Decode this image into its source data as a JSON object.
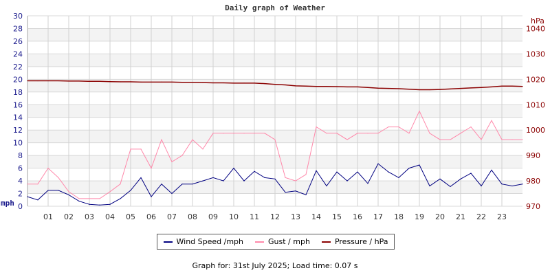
{
  "chart_data": {
    "type": "line",
    "title": "Daily graph of Weather",
    "x_ticks": [
      "01",
      "02",
      "03",
      "04",
      "05",
      "06",
      "07",
      "08",
      "09",
      "10",
      "11",
      "12",
      "13",
      "14",
      "15",
      "16",
      "17",
      "18",
      "19",
      "20",
      "21",
      "22",
      "23"
    ],
    "x_unit": "hour",
    "x": [
      0,
      0.5,
      1,
      1.5,
      2,
      2.5,
      3,
      3.5,
      4,
      4.5,
      5,
      5.5,
      6,
      6.5,
      7,
      7.5,
      8,
      8.5,
      9,
      9.5,
      10,
      10.5,
      11,
      11.5,
      12,
      12.5,
      13,
      13.5,
      14,
      14.5,
      15,
      15.5,
      16,
      16.5,
      17,
      17.5,
      18,
      18.5,
      19,
      19.5,
      20,
      20.5,
      21,
      21.5,
      22,
      22.5,
      23,
      23.5,
      24
    ],
    "left_axis": {
      "label": "mph",
      "range": [
        0,
        30
      ],
      "ticks": [
        0,
        2,
        4,
        6,
        8,
        10,
        12,
        14,
        16,
        18,
        20,
        22,
        24,
        26,
        28,
        30
      ],
      "color": "#1a1a8c"
    },
    "right_axis": {
      "label": "hPa",
      "range": [
        970,
        1045
      ],
      "ticks": [
        970,
        980,
        990,
        1000,
        1010,
        1020,
        1030,
        1040
      ],
      "color": "#8b0000"
    },
    "grid": true,
    "legend_placement": "bottom",
    "series": [
      {
        "name": "Wind Speed /mph",
        "axis": "left",
        "color": "#000080",
        "values": [
          1.5,
          1.0,
          2.5,
          2.5,
          1.8,
          0.8,
          0.3,
          0.2,
          0.3,
          1.2,
          2.5,
          4.5,
          1.5,
          3.5,
          2.0,
          3.5,
          3.5,
          4.0,
          4.5,
          4.0,
          6.0,
          4.0,
          5.5,
          4.5,
          4.3,
          2.2,
          2.4,
          1.8,
          5.6,
          3.2,
          5.4,
          4.0,
          5.4,
          3.6,
          6.7,
          5.4,
          4.5,
          6.0,
          6.5,
          3.2,
          4.3,
          3.1,
          4.3,
          5.2,
          3.2,
          5.7,
          3.5,
          3.2,
          3.5
        ]
      },
      {
        "name": "Gust / mph",
        "axis": "left",
        "color": "#ff88aa",
        "values": [
          3.5,
          3.5,
          6.0,
          4.5,
          2.3,
          1.2,
          1.2,
          1.2,
          2.3,
          3.5,
          9.0,
          9.0,
          6.0,
          10.5,
          7.0,
          8.0,
          10.5,
          9.0,
          11.5,
          11.5,
          11.5,
          11.5,
          11.5,
          11.5,
          10.5,
          4.5,
          4.0,
          5.0,
          12.5,
          11.5,
          11.5,
          10.5,
          11.5,
          11.5,
          11.5,
          12.5,
          12.5,
          11.5,
          15.0,
          11.5,
          10.5,
          10.5,
          11.5,
          12.5,
          10.5,
          13.5,
          10.5,
          10.5,
          10.5
        ]
      },
      {
        "name": "Pressure / hPa",
        "axis": "right",
        "color": "#8b0000",
        "values": [
          1019.4,
          1019.4,
          1019.4,
          1019.4,
          1019.3,
          1019.3,
          1019.2,
          1019.2,
          1019.1,
          1019.0,
          1019.0,
          1018.9,
          1018.9,
          1018.9,
          1018.9,
          1018.8,
          1018.8,
          1018.7,
          1018.6,
          1018.6,
          1018.5,
          1018.5,
          1018.5,
          1018.3,
          1018.0,
          1017.8,
          1017.4,
          1017.3,
          1017.2,
          1017.2,
          1017.1,
          1017.0,
          1017.0,
          1016.8,
          1016.5,
          1016.4,
          1016.3,
          1016.1,
          1015.9,
          1015.9,
          1016.0,
          1016.2,
          1016.4,
          1016.6,
          1016.8,
          1017.0,
          1017.3,
          1017.3,
          1017.2
        ]
      }
    ]
  },
  "footer": "Graph for: 31st July 2025; Load time: 0.07 s"
}
